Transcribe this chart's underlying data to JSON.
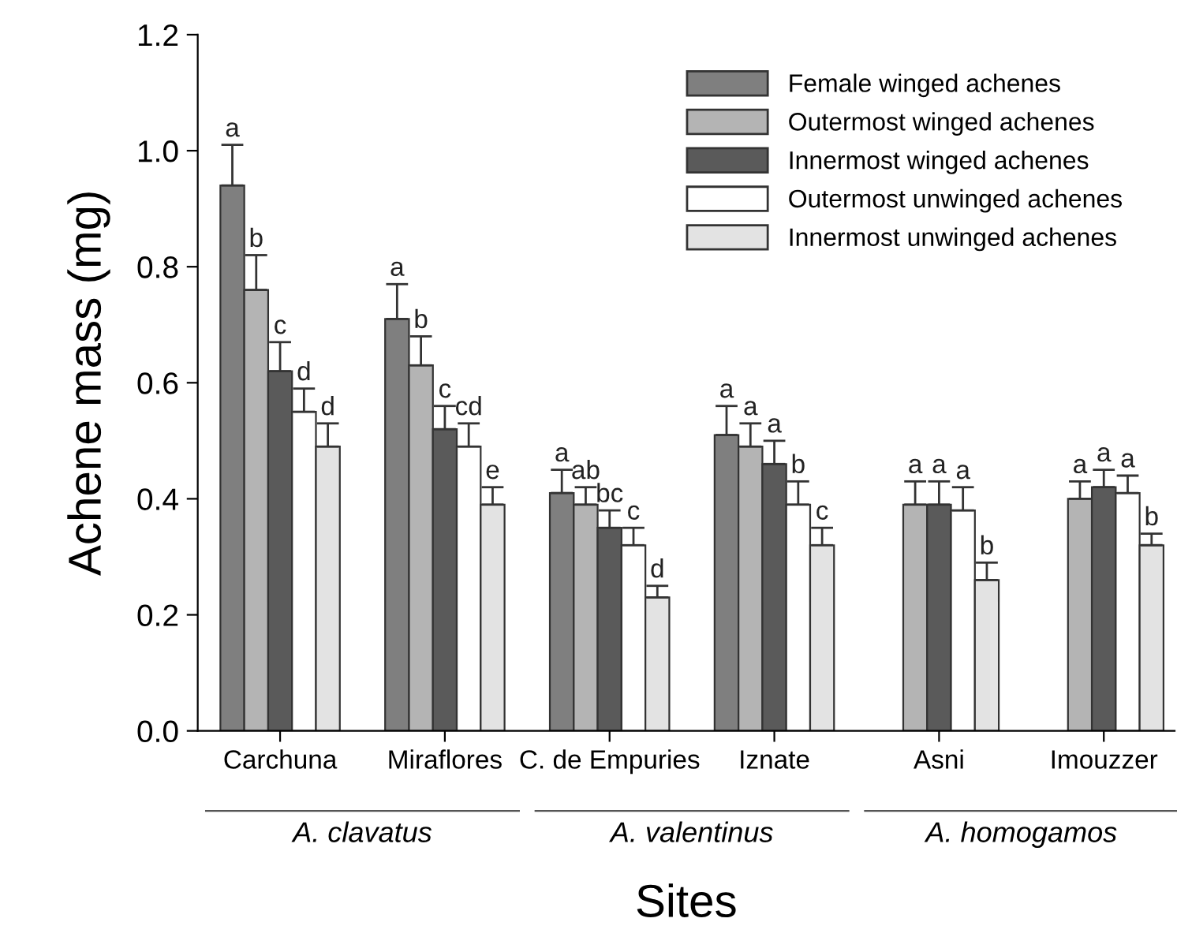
{
  "chart_data": {
    "type": "bar",
    "xlabel": "Sites",
    "ylabel": "Achene mass (mg)",
    "categories": [
      "Carchuna",
      "Miraflores",
      "C. de Empuries",
      "Iznate",
      "Asni",
      "Imouzzer"
    ],
    "ylim": [
      0,
      1.2
    ],
    "yticks": [
      {
        "value": 0,
        "label": "0.0"
      },
      {
        "value": 0.2,
        "label": "0.2"
      },
      {
        "value": 0.4,
        "label": "0.4"
      },
      {
        "value": 0.6,
        "label": "0.6"
      },
      {
        "value": 0.8,
        "label": "0.8"
      },
      {
        "value": 1.0,
        "label": "1.0"
      },
      {
        "value": 1.2,
        "label": "1.2"
      }
    ],
    "grid": false,
    "legend": "top right",
    "annotations": [
      "A. clavatus",
      "A. valentinus",
      "A. homogamos"
    ],
    "series": [
      {
        "name": "Female winged achenes",
        "color": "#7f7f7f",
        "values": [
          0.94,
          0.71,
          0.41,
          0.51,
          null,
          null
        ],
        "errors": [
          [
            0.94,
            1.01
          ],
          [
            0.71,
            0.77
          ],
          [
            0.41,
            0.45
          ],
          [
            0.51,
            0.56
          ],
          null,
          null
        ],
        "value_labels": [
          "a",
          "a",
          "a",
          "a",
          null,
          null
        ]
      },
      {
        "name": "Outermost winged achenes",
        "color": "#b4b4b4",
        "values": [
          0.76,
          0.63,
          0.39,
          0.49,
          0.39,
          0.4
        ],
        "errors": [
          [
            0.76,
            0.82
          ],
          [
            0.63,
            0.68
          ],
          [
            0.39,
            0.42
          ],
          [
            0.49,
            0.53
          ],
          [
            0.39,
            0.43
          ],
          [
            0.4,
            0.43
          ]
        ],
        "value_labels": [
          "b",
          "b",
          "ab",
          "a",
          "a",
          "a"
        ]
      },
      {
        "name": "Innermost winged achenes",
        "color": "#5a5a5a",
        "values": [
          0.62,
          0.52,
          0.35,
          0.46,
          0.39,
          0.42
        ],
        "errors": [
          [
            0.62,
            0.67
          ],
          [
            0.52,
            0.56
          ],
          [
            0.35,
            0.38
          ],
          [
            0.46,
            0.5
          ],
          [
            0.39,
            0.43
          ],
          [
            0.42,
            0.45
          ]
        ],
        "value_labels": [
          "c",
          "c",
          "bc",
          "a",
          "a",
          "a"
        ]
      },
      {
        "name": "Outermost unwinged achenes",
        "color": "#ffffff",
        "values": [
          0.55,
          0.49,
          0.32,
          0.39,
          0.38,
          0.41
        ],
        "errors": [
          [
            0.55,
            0.59
          ],
          [
            0.49,
            0.53
          ],
          [
            0.32,
            0.35
          ],
          [
            0.39,
            0.43
          ],
          [
            0.38,
            0.42
          ],
          [
            0.41,
            0.44
          ]
        ],
        "value_labels": [
          "d",
          "cd",
          "c",
          "b",
          "a",
          "a"
        ]
      },
      {
        "name": "Innermost unwinged achenes",
        "color": "#e3e3e3",
        "values": [
          0.49,
          0.39,
          0.23,
          0.32,
          0.26,
          0.32
        ],
        "errors": [
          [
            0.49,
            0.53
          ],
          [
            0.39,
            0.42
          ],
          [
            0.23,
            0.25
          ],
          [
            0.32,
            0.35
          ],
          [
            0.26,
            0.29
          ],
          [
            0.32,
            0.34
          ]
        ],
        "value_labels": [
          "d",
          "e",
          "d",
          "c",
          "b",
          "b"
        ]
      }
    ]
  }
}
